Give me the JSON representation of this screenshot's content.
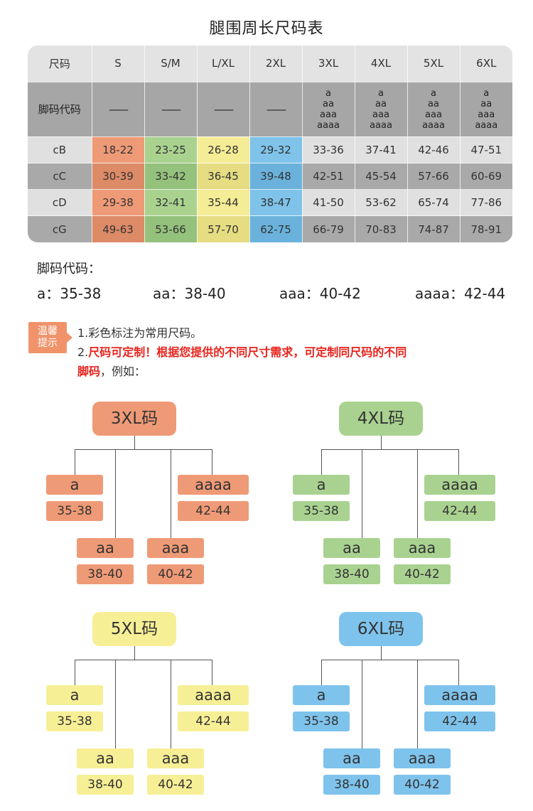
{
  "title": "腿围周长尺码表",
  "table": {
    "header": [
      "尺码",
      "S",
      "S/M",
      "L/XL",
      "2XL",
      "3XL",
      "4XL",
      "5XL",
      "6XL"
    ],
    "code_row": {
      "label": "脚码代码",
      "dash": "——",
      "stack": [
        "a",
        "aa",
        "aaa",
        "aaaa"
      ]
    },
    "rows": [
      {
        "label": "cB",
        "values": [
          "18-22",
          "23-25",
          "26-28",
          "29-32",
          "33-36",
          "37-41",
          "42-46",
          "47-51"
        ]
      },
      {
        "label": "cC",
        "values": [
          "30-39",
          "33-42",
          "36-45",
          "39-48",
          "42-51",
          "45-54",
          "57-66",
          "60-69"
        ]
      },
      {
        "label": "cD",
        "values": [
          "29-38",
          "32-41",
          "35-44",
          "38-47",
          "41-50",
          "53-62",
          "65-74",
          "77-86"
        ]
      },
      {
        "label": "cG",
        "values": [
          "49-63",
          "53-66",
          "57-70",
          "62-75",
          "66-79",
          "70-83",
          "74-87",
          "78-91"
        ]
      }
    ]
  },
  "legend": {
    "title": "脚码代码：",
    "items": [
      "a：35-38",
      "aa：38-40",
      "aaa：40-42",
      "aaaa：42-44"
    ]
  },
  "tip": {
    "badge_line1": "温馨",
    "badge_line2": "提示",
    "line1": "1.彩色标注为常用尺码。",
    "line2_prefix": "2.",
    "line2_red": "尺码可定制！根据您提供的不同尺寸需求，可定制同尺码的不同",
    "line3_red": "脚码",
    "line3_rest": "，例如："
  },
  "trees": [
    {
      "root": "3XL码",
      "color": "#ef9a76",
      "leaves": [
        {
          "label": "a",
          "range": "35-38"
        },
        {
          "label": "aa",
          "range": "38-40"
        },
        {
          "label": "aaa",
          "range": "40-42"
        },
        {
          "label": "aaaa",
          "range": "42-44"
        }
      ]
    },
    {
      "root": "4XL码",
      "color": "#a9d290",
      "leaves": [
        {
          "label": "a",
          "range": "35-38"
        },
        {
          "label": "aa",
          "range": "38-40"
        },
        {
          "label": "aaa",
          "range": "40-42"
        },
        {
          "label": "aaaa",
          "range": "42-44"
        }
      ]
    },
    {
      "root": "5XL码",
      "color": "#f7ef96",
      "leaves": [
        {
          "label": "a",
          "range": "35-38"
        },
        {
          "label": "aa",
          "range": "38-40"
        },
        {
          "label": "aaa",
          "range": "40-42"
        },
        {
          "label": "aaaa",
          "range": "42-44"
        }
      ]
    },
    {
      "root": "6XL码",
      "color": "#7ec3ec",
      "leaves": [
        {
          "label": "a",
          "range": "35-38"
        },
        {
          "label": "aa",
          "range": "38-40"
        },
        {
          "label": "aaa",
          "range": "40-42"
        },
        {
          "label": "aaaa",
          "range": "42-44"
        }
      ]
    }
  ]
}
